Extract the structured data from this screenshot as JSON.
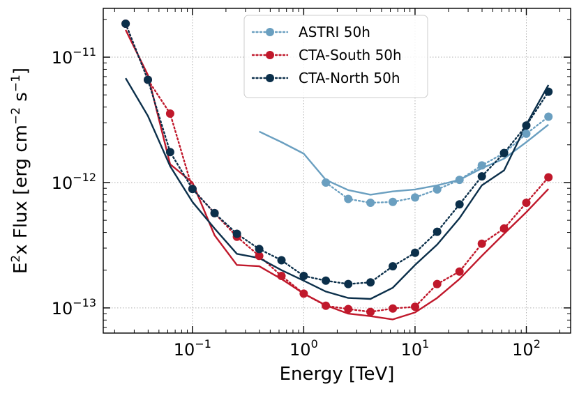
{
  "chart_data": {
    "type": "line",
    "xscale": "log",
    "yscale": "log",
    "xlabel": "Energy [TeV]",
    "ylabel": {
      "base": "E",
      "sup1": "2",
      "rest": "x Flux [erg cm",
      "sup2": "−2",
      "mid": " s",
      "sup3": "−1",
      "end": "]"
    },
    "xlim": [
      0.0158,
      250
    ],
    "ylim": [
      6.3e-14,
      2.45e-11
    ],
    "grid": true,
    "legend_position": "top-center",
    "x_ticks": [
      {
        "value": 0.1,
        "base": "10",
        "exp": "−1"
      },
      {
        "value": 1,
        "base": "10",
        "exp": "0"
      },
      {
        "value": 10,
        "base": "10",
        "exp": "1"
      },
      {
        "value": 100,
        "base": "10",
        "exp": "2"
      }
    ],
    "y_ticks": [
      {
        "value": 1e-13,
        "base": "10",
        "exp": "−13"
      },
      {
        "value": 1e-12,
        "base": "10",
        "exp": "−12"
      },
      {
        "value": 1e-11,
        "base": "10",
        "exp": "−11"
      }
    ],
    "series": [
      {
        "name": "ASTRI 50h",
        "color": "#6a9fc0",
        "markers": {
          "x": [
            1.58,
            2.51,
            3.98,
            6.31,
            10,
            15.8,
            25.1,
            39.8,
            63.1,
            100,
            158
          ],
          "y": [
            1e-12,
            7.4e-13,
            6.9e-13,
            7e-13,
            7.6e-13,
            8.8e-13,
            1.05e-12,
            1.37e-12,
            1.72e-12,
            2.45e-12,
            3.35e-12
          ]
        },
        "line": {
          "x": [
            0.398,
            0.631,
            1.0,
            1.58,
            2.51,
            3.98,
            6.31,
            10,
            15.8,
            25.1,
            39.8,
            63.1,
            100,
            158
          ],
          "y": [
            2.55e-12,
            2.1e-12,
            1.7e-12,
            1.05e-12,
            8.7e-13,
            8e-13,
            8.5e-13,
            8.8e-13,
            9.5e-13,
            1.05e-12,
            1.3e-12,
            1.55e-12,
            2.1e-12,
            2.9e-12
          ]
        }
      },
      {
        "name": "CTA-South 50h",
        "color": "#c0182b",
        "markers": {
          "x": [
            0.0251,
            0.0398,
            0.0631,
            0.1,
            0.158,
            0.251,
            0.398,
            0.631,
            1.0,
            1.58,
            2.51,
            3.98,
            6.31,
            10,
            15.8,
            25.1,
            39.8,
            63.1,
            100,
            158
          ],
          "y": [
            1.85e-11,
            6.6e-12,
            3.55e-12,
            8.9e-13,
            5.7e-13,
            3.7e-13,
            2.6e-13,
            1.8e-13,
            1.3e-13,
            1.04e-13,
            9.8e-14,
            9.3e-14,
            9.9e-14,
            1.02e-13,
            1.55e-13,
            1.95e-13,
            3.25e-13,
            4.3e-13,
            6.9e-13,
            1.1e-12
          ]
        },
        "line": {
          "x": [
            0.0251,
            0.0398,
            0.0631,
            0.1,
            0.158,
            0.251,
            0.398,
            0.631,
            1.0,
            1.58,
            2.51,
            3.98,
            6.31,
            10,
            15.8,
            25.1,
            39.8,
            63.1,
            100,
            158
          ],
          "y": [
            1.65e-11,
            7.2e-12,
            1.4e-12,
            1e-12,
            3.8e-13,
            2.2e-13,
            2.15e-13,
            1.7e-13,
            1.3e-13,
            1.05e-13,
            9e-14,
            8.6e-14,
            8.1e-14,
            9.2e-14,
            1.2e-13,
            1.7e-13,
            2.6e-13,
            3.9e-13,
            5.8e-13,
            8.9e-13
          ]
        }
      },
      {
        "name": "CTA-North 50h",
        "color": "#0b2f4a",
        "markers": {
          "x": [
            0.0251,
            0.0398,
            0.0631,
            0.1,
            0.158,
            0.251,
            0.398,
            0.631,
            1.0,
            1.58,
            2.51,
            3.98,
            6.31,
            10,
            15.8,
            25.1,
            39.8,
            63.1,
            100,
            158
          ],
          "y": [
            1.85e-11,
            6.6e-12,
            1.75e-12,
            8.9e-13,
            5.7e-13,
            3.9e-13,
            2.95e-13,
            2.4e-13,
            1.8e-13,
            1.65e-13,
            1.55e-13,
            1.6e-13,
            2.15e-13,
            2.75e-13,
            4.05e-13,
            6.7e-13,
            1.12e-12,
            1.72e-12,
            2.85e-12,
            5.3e-12
          ]
        },
        "line": {
          "x": [
            0.0251,
            0.0398,
            0.0631,
            0.1,
            0.158,
            0.251,
            0.398,
            0.631,
            1.0,
            1.58,
            2.51,
            3.98,
            6.31,
            10,
            15.8,
            25.1,
            39.8,
            63.1,
            100,
            158
          ],
          "y": [
            6.8e-12,
            3.4e-12,
            1.35e-12,
            7e-13,
            4.3e-13,
            2.7e-13,
            2.5e-13,
            2e-13,
            1.65e-13,
            1.35e-13,
            1.2e-13,
            1.18e-13,
            1.45e-13,
            2.2e-13,
            3.2e-13,
            5.2e-13,
            9.5e-13,
            1.25e-12,
            2.9e-12,
            6e-12
          ]
        }
      }
    ]
  }
}
